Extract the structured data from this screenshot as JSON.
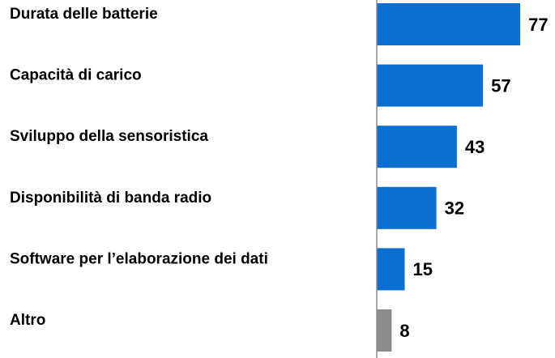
{
  "chart_data": {
    "type": "bar",
    "orientation": "horizontal",
    "categories": [
      "Durata delle batterie",
      "Capacità di carico",
      "Sviluppo della sensoristica",
      "Disponibilità di banda radio",
      "Software per l’elaborazione dei dati",
      "Altro"
    ],
    "values": [
      77,
      57,
      43,
      32,
      15,
      8
    ],
    "colors": [
      "#0a6fd0",
      "#0a6fd0",
      "#0a6fd0",
      "#0a6fd0",
      "#0a6fd0",
      "#8c8c8c"
    ]
  }
}
